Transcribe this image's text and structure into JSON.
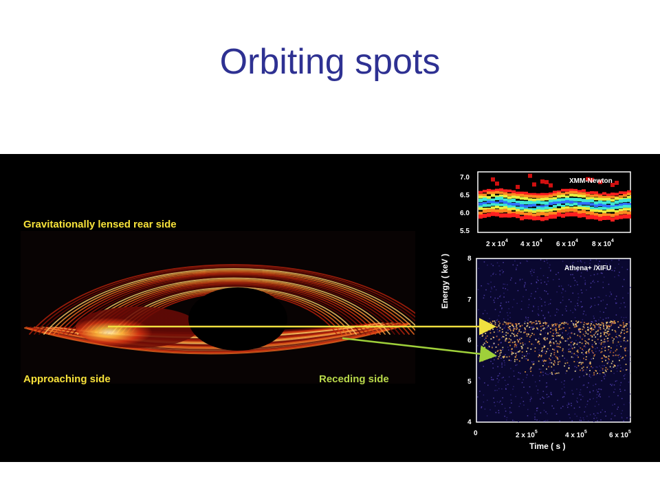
{
  "slide": {
    "title": "Orbiting spots"
  },
  "disk": {
    "label_rear": "Gravitationally lensed rear side",
    "label_approaching": "Approaching side",
    "label_receding": "Receding side"
  },
  "xmm_plot": {
    "instrument": "XMM-Newton",
    "y_ticks": [
      "7.0",
      "6.5",
      "6.0",
      "5.5"
    ],
    "x_ticks": [
      {
        "base": "2 x 10",
        "exp": "4"
      },
      {
        "base": "4 x 10",
        "exp": "4"
      },
      {
        "base": "6 x 10",
        "exp": "4"
      },
      {
        "base": "8 x 10",
        "exp": "4"
      }
    ]
  },
  "athena_plot": {
    "instrument": "Athena+ /XIFU",
    "y_ticks": [
      "8",
      "7",
      "6",
      "5",
      "4"
    ],
    "x_ticks": [
      {
        "base": "0",
        "exp": ""
      },
      {
        "base": "2 x 10",
        "exp": "5"
      },
      {
        "base": "4 x 10",
        "exp": "5"
      },
      {
        "base": "6 x 10",
        "exp": "5"
      }
    ],
    "y_label": "Energy   ( keV )",
    "x_label": "Time   ( s )"
  },
  "colors": {
    "title": "#2e3192",
    "rear_label": "#f7e23a",
    "approach_label": "#f7e23a",
    "recede_label": "#b8d94a",
    "arrow_yellow": "#f0e040",
    "arrow_green": "#9fd03a"
  }
}
